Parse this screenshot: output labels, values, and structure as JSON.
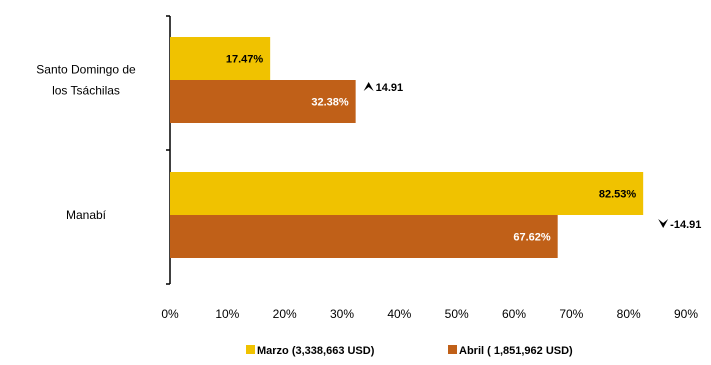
{
  "chart_data": {
    "type": "bar",
    "orientation": "horizontal",
    "categories": [
      "Santo Domingo de los Tsáchilas",
      "Manabí"
    ],
    "category_lines": [
      [
        "Santo Domingo de",
        "los Tsáchilas"
      ],
      [
        "Manabí"
      ]
    ],
    "series": [
      {
        "name": "Marzo (3,338,663 USD)",
        "values": [
          17.47,
          82.53
        ],
        "labels": [
          "17.47%",
          "82.53%"
        ],
        "color": "#F0C200",
        "label_color": "#000000"
      },
      {
        "name": "Abril ( 1,851,962 USD)",
        "values": [
          32.38,
          67.62
        ],
        "labels": [
          "32.38%",
          "67.62%"
        ],
        "color": "#C06018",
        "label_color": "#ffffff"
      }
    ],
    "changes": [
      {
        "value": "14.91",
        "direction": "up"
      },
      {
        "value": "-14.91",
        "direction": "down"
      }
    ],
    "xlim": [
      0,
      90
    ],
    "xticks": [
      "0%",
      "10%",
      "20%",
      "30%",
      "40%",
      "50%",
      "60%",
      "70%",
      "80%",
      "90%"
    ],
    "legend_position": "bottom",
    "grid": false
  }
}
